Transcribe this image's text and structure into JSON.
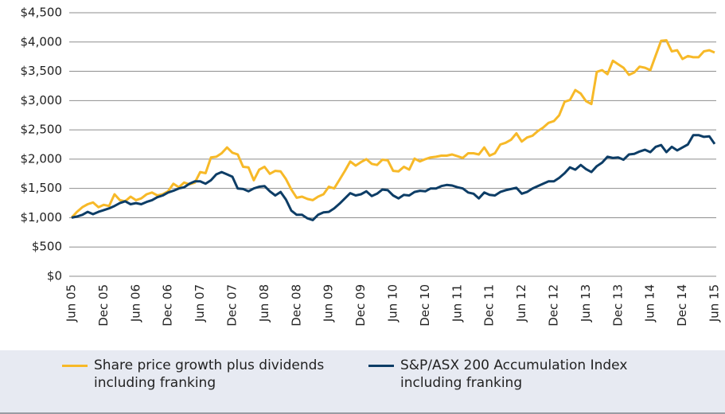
{
  "chart_data": {
    "type": "line",
    "categories": [
      "Jun 05",
      null,
      null,
      null,
      null,
      null,
      "Dec 05",
      null,
      null,
      null,
      null,
      null,
      "Jun 06",
      null,
      null,
      null,
      null,
      null,
      "Dec 06",
      null,
      null,
      null,
      null,
      null,
      "Jun 07",
      null,
      null,
      null,
      null,
      null,
      "Dec 07",
      null,
      null,
      null,
      null,
      null,
      "Jun 08",
      null,
      null,
      null,
      null,
      null,
      "Dec 08",
      null,
      null,
      null,
      null,
      null,
      "Jun 09",
      null,
      null,
      null,
      null,
      null,
      "Dec 09",
      null,
      null,
      null,
      null,
      null,
      "Jun 10",
      null,
      null,
      null,
      null,
      null,
      "Dec 10",
      null,
      null,
      null,
      null,
      null,
      "Jun 11",
      null,
      null,
      null,
      null,
      null,
      "Dec 11",
      null,
      null,
      null,
      null,
      null,
      "Jun 12",
      null,
      null,
      null,
      null,
      null,
      "Dec 12",
      null,
      null,
      null,
      null,
      null,
      "Jun 13",
      null,
      null,
      null,
      null,
      null,
      "Dec 13",
      null,
      null,
      null,
      null,
      null,
      "Jun 14",
      null,
      null,
      null,
      null,
      null,
      "Dec 14",
      null,
      null,
      null,
      null,
      null,
      "Jun 15"
    ],
    "series": [
      {
        "name": "Share price growth plus dividends including franking",
        "color": "#f7b928",
        "values": [
          1000,
          1100,
          1180,
          1230,
          1260,
          1180,
          1220,
          1200,
          1400,
          1300,
          1280,
          1360,
          1300,
          1330,
          1400,
          1430,
          1380,
          1400,
          1450,
          1580,
          1520,
          1600,
          1570,
          1600,
          1780,
          1760,
          2030,
          2040,
          2100,
          2200,
          2110,
          2080,
          1870,
          1860,
          1640,
          1820,
          1870,
          1750,
          1800,
          1790,
          1660,
          1480,
          1340,
          1360,
          1320,
          1300,
          1360,
          1400,
          1530,
          1500,
          1650,
          1800,
          1960,
          1890,
          1950,
          2000,
          1920,
          1900,
          1990,
          1980,
          1800,
          1790,
          1870,
          1820,
          2010,
          1960,
          2000,
          2030,
          2040,
          2060,
          2060,
          2080,
          2050,
          2020,
          2100,
          2100,
          2080,
          2200,
          2060,
          2100,
          2250,
          2280,
          2330,
          2440,
          2300,
          2370,
          2400,
          2480,
          2540,
          2620,
          2650,
          2750,
          2980,
          3010,
          3180,
          3120,
          2990,
          2940,
          3490,
          3520,
          3450,
          3680,
          3620,
          3560,
          3440,
          3480,
          3580,
          3560,
          3520,
          3770,
          4020,
          4030,
          3840,
          3860,
          3710,
          3760,
          3740,
          3740,
          3840,
          3860,
          3820
        ]
      },
      {
        "name": "S&P/ASX 200 Accumulation Index including franking",
        "color": "#0d3d66",
        "values": [
          1000,
          1020,
          1050,
          1100,
          1060,
          1100,
          1130,
          1160,
          1200,
          1250,
          1280,
          1230,
          1250,
          1230,
          1270,
          1300,
          1350,
          1380,
          1430,
          1460,
          1500,
          1520,
          1580,
          1620,
          1620,
          1580,
          1640,
          1740,
          1780,
          1740,
          1700,
          1500,
          1490,
          1450,
          1500,
          1530,
          1540,
          1450,
          1380,
          1440,
          1310,
          1120,
          1050,
          1050,
          990,
          960,
          1050,
          1090,
          1100,
          1160,
          1240,
          1330,
          1420,
          1380,
          1400,
          1450,
          1370,
          1410,
          1480,
          1470,
          1380,
          1330,
          1390,
          1380,
          1440,
          1460,
          1450,
          1500,
          1500,
          1540,
          1560,
          1550,
          1520,
          1500,
          1430,
          1410,
          1330,
          1430,
          1390,
          1380,
          1440,
          1470,
          1490,
          1510,
          1410,
          1440,
          1500,
          1540,
          1580,
          1620,
          1620,
          1680,
          1760,
          1860,
          1820,
          1900,
          1830,
          1780,
          1880,
          1940,
          2040,
          2020,
          2030,
          1990,
          2080,
          2090,
          2130,
          2160,
          2120,
          2210,
          2240,
          2120,
          2210,
          2150,
          2200,
          2250,
          2410,
          2410,
          2380,
          2390,
          2260
        ]
      }
    ],
    "ylim": [
      0,
      4500
    ],
    "yticks": [
      {
        "value": 0,
        "label": "$0"
      },
      {
        "value": 500,
        "label": "$500"
      },
      {
        "value": 1000,
        "label": "$1,000"
      },
      {
        "value": 1500,
        "label": "$1,500"
      },
      {
        "value": 2000,
        "label": "$2,000"
      },
      {
        "value": 2500,
        "label": "$2,500"
      },
      {
        "value": 3000,
        "label": "$3,000"
      },
      {
        "value": 3500,
        "label": "$3,500"
      },
      {
        "value": 4000,
        "label": "$4,000"
      },
      {
        "value": 4500,
        "label": "$4,500"
      }
    ],
    "grid": true
  }
}
